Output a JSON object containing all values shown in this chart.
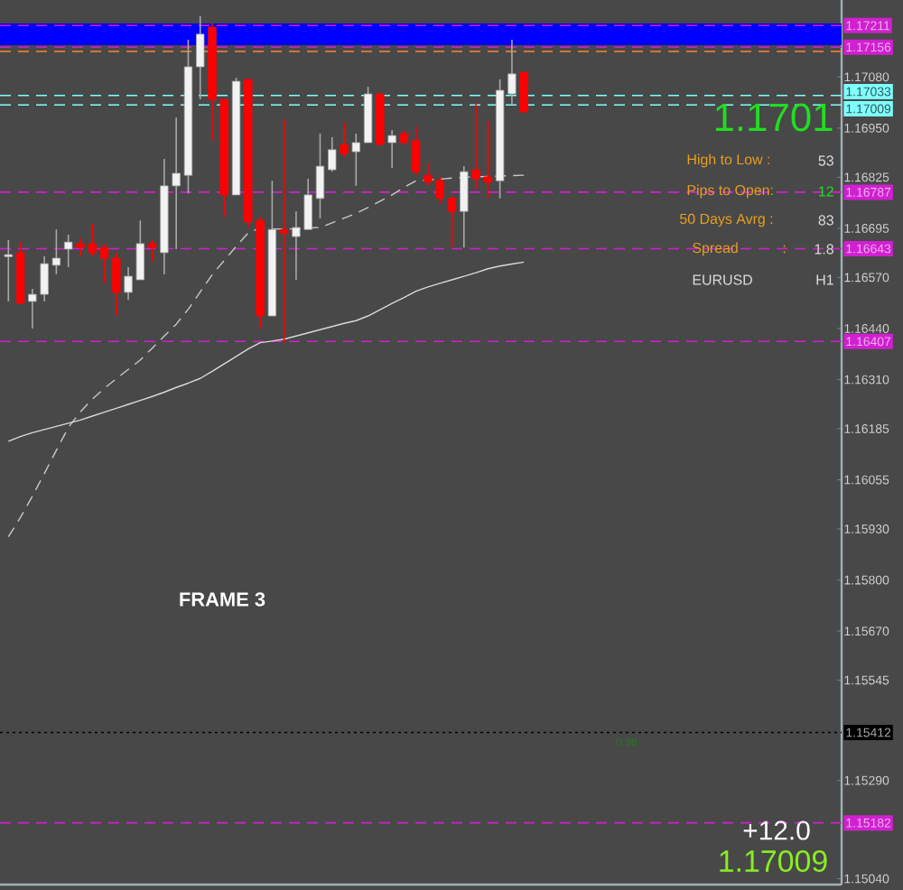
{
  "chart_data": {
    "type": "candlestick",
    "categories": [
      null,
      null,
      null,
      null,
      null,
      null,
      null,
      null,
      null,
      null,
      null,
      null,
      null,
      null,
      null,
      null,
      null,
      null,
      null,
      null,
      null,
      null,
      null,
      null,
      null,
      null,
      null,
      null,
      null,
      null,
      null,
      null,
      null,
      null,
      null,
      null,
      null,
      null,
      null,
      null,
      null,
      null,
      null,
      null
    ],
    "ohlc": [
      [
        1.16623,
        1.16665,
        1.16509,
        1.16628
      ],
      [
        1.16633,
        1.1666,
        1.16504,
        1.16504
      ],
      [
        1.16509,
        1.16541,
        1.1644,
        1.16527
      ],
      [
        1.16527,
        1.16624,
        1.16509,
        1.16605
      ],
      [
        1.16601,
        1.16692,
        1.16578,
        1.16619
      ],
      [
        1.16642,
        1.16679,
        1.16596,
        1.1666
      ],
      [
        1.16656,
        1.16669,
        1.16624,
        1.16646
      ],
      [
        1.16656,
        1.16706,
        1.16624,
        1.16633
      ],
      [
        1.16646,
        1.16656,
        1.16555,
        1.16619
      ],
      [
        1.16619,
        1.16633,
        1.16472,
        1.16532
      ],
      [
        1.16532,
        1.16596,
        1.16513,
        1.16573
      ],
      [
        1.16564,
        1.16715,
        1.16564,
        1.16656
      ],
      [
        1.16656,
        1.16665,
        1.1661,
        1.16646
      ],
      [
        1.16633,
        1.16872,
        1.16578,
        1.16803
      ],
      [
        1.16803,
        1.16977,
        1.16642,
        1.16835
      ],
      [
        1.1683,
        1.17175,
        1.16784,
        1.17106
      ],
      [
        1.17106,
        1.17235,
        1.17023,
        1.17189
      ],
      [
        1.17207,
        1.17216,
        1.16918,
        1.17023
      ],
      [
        1.17023,
        1.17023,
        1.16725,
        1.1678
      ],
      [
        1.1678,
        1.17078,
        1.1678,
        1.17069
      ],
      [
        1.17074,
        1.17074,
        1.16697,
        1.16711
      ],
      [
        1.16715,
        1.16725,
        1.1644,
        1.16472
      ],
      [
        1.16472,
        1.16816,
        1.16472,
        1.16692
      ],
      [
        1.16692,
        1.16973,
        1.16403,
        1.16683
      ],
      [
        1.16674,
        1.16738,
        1.16564,
        1.16697
      ],
      [
        1.16692,
        1.16821,
        1.16692,
        1.1678
      ],
      [
        1.16771,
        1.16936,
        1.1672,
        1.16853
      ],
      [
        1.16844,
        1.16927,
        1.16839,
        1.16895
      ],
      [
        1.16908,
        1.16964,
        1.16876,
        1.16885
      ],
      [
        1.1689,
        1.16936,
        1.16803,
        1.16913
      ],
      [
        1.16913,
        1.17055,
        1.16913,
        1.17037
      ],
      [
        1.17037,
        1.17037,
        1.16908,
        1.16908
      ],
      [
        1.16913,
        1.16945,
        1.16849,
        1.16931
      ],
      [
        1.16936,
        1.16945,
        1.16908,
        1.16913
      ],
      [
        1.16918,
        1.16954,
        1.1683,
        1.16839
      ],
      [
        1.1683,
        1.16862,
        1.16803,
        1.16812
      ],
      [
        1.16816,
        1.16826,
        1.16757,
        1.16771
      ],
      [
        1.16771,
        1.1678,
        1.16646,
        1.16738
      ],
      [
        1.16738,
        1.16853,
        1.16646,
        1.16839
      ],
      [
        1.16844,
        1.17014,
        1.16794,
        1.16821
      ],
      [
        1.16826,
        1.16968,
        1.16771,
        1.16812
      ],
      [
        1.16816,
        1.17074,
        1.16771,
        1.17046
      ],
      [
        1.17037,
        1.17175,
        1.17009,
        1.17088
      ],
      [
        1.17092,
        1.17092,
        1.16991,
        1.16991
      ]
    ],
    "series": [
      {
        "type": "line",
        "color": "#c8c8c8",
        "line_style": "dashed",
        "values": [
          1.1591,
          1.15959,
          1.16013,
          1.16071,
          1.1613,
          1.16188,
          1.16228,
          1.1626,
          1.16288,
          1.16312,
          1.16336,
          1.1636,
          1.1639,
          1.16421,
          1.16451,
          1.16489,
          1.16533,
          1.16577,
          1.16613,
          1.16649,
          1.16683,
          1.16696,
          1.16694,
          1.16693,
          1.16694,
          1.16696,
          1.16697,
          1.16709,
          1.16721,
          1.16733,
          1.16748,
          1.16764,
          1.1678,
          1.16799,
          1.16816,
          1.16818,
          1.1682,
          1.16823,
          1.16825,
          1.16826,
          1.16827,
          1.16828,
          1.16829,
          1.1683
        ]
      },
      {
        "type": "line",
        "color": "#d8d8d8",
        "line_style": "solid",
        "values": [
          1.16153,
          1.16165,
          1.16175,
          1.16183,
          1.16191,
          1.16199,
          1.16207,
          1.16217,
          1.16227,
          1.16237,
          1.16247,
          1.16257,
          1.16267,
          1.16278,
          1.1629,
          1.16301,
          1.16313,
          1.16331,
          1.1635,
          1.16369,
          1.16388,
          1.16404,
          1.16408,
          1.16413,
          1.16421,
          1.16429,
          1.16437,
          1.16445,
          1.16453,
          1.1646,
          1.16472,
          1.16488,
          1.16504,
          1.16519,
          1.16535,
          1.16546,
          1.16555,
          1.16564,
          1.16573,
          1.16582,
          1.16592,
          1.16599,
          1.16604,
          1.16609
        ]
      }
    ],
    "ylim": [
      1.15025,
      1.17276
    ],
    "yticks": [
      {
        "value": 1.1708,
        "label": "1.17080"
      },
      {
        "value": 1.1695,
        "label": "1.16950"
      },
      {
        "value": 1.16825,
        "label": "1.16825"
      },
      {
        "value": 1.16695,
        "label": "1.16695"
      },
      {
        "value": 1.1657,
        "label": "1.16570"
      },
      {
        "value": 1.1644,
        "label": "1.16440"
      },
      {
        "value": 1.1631,
        "label": "1.16310"
      },
      {
        "value": 1.16185,
        "label": "1.16185"
      },
      {
        "value": 1.16055,
        "label": "1.16055"
      },
      {
        "value": 1.1593,
        "label": "1.15930"
      },
      {
        "value": 1.158,
        "label": "1.15800"
      },
      {
        "value": 1.1567,
        "label": "1.15670"
      },
      {
        "value": 1.15545,
        "label": "1.15545"
      },
      {
        "value": 1.1529,
        "label": "1.15290"
      },
      {
        "value": 1.1504,
        "label": "1.15040"
      }
    ],
    "tick_labels": "y",
    "bands": [
      {
        "axis": "y",
        "from": 1.17161,
        "to": 1.17216,
        "color": "#0000ff"
      }
    ],
    "ref_lines": [
      {
        "axis": "y",
        "value": 1.17211,
        "label": "1.17211",
        "color": "#d020d0",
        "line_style": "dashed"
      },
      {
        "axis": "y",
        "value": 1.17156,
        "label": "1.17156",
        "color": "#d020d0",
        "line_style": "dashed"
      },
      {
        "axis": "y",
        "value": 1.17145,
        "color": "#ff8040",
        "line_style": "dashed"
      },
      {
        "axis": "y",
        "value": 1.17033,
        "label": "1.17033",
        "color": "#80ffff",
        "line_style": "dashed"
      },
      {
        "axis": "y",
        "value": 1.17009,
        "label": "1.17009",
        "color": "#80ffff",
        "line_style": "dashed"
      },
      {
        "axis": "y",
        "value": 1.16787,
        "label": "1.16787",
        "color": "#d020d0",
        "line_style": "dashed"
      },
      {
        "axis": "y",
        "value": 1.16643,
        "label": "1.16643",
        "color": "#d020d0",
        "line_style": "dashed"
      },
      {
        "axis": "y",
        "value": 1.16407,
        "label": "1.16407",
        "color": "#d020d0",
        "line_style": "dashed"
      },
      {
        "axis": "y",
        "value": 1.15412,
        "label": "1.15412",
        "color": "#000000",
        "line_style": "dotted"
      },
      {
        "axis": "y",
        "value": 1.15182,
        "label": "1.15182",
        "color": "#d020d0",
        "line_style": "dashed"
      }
    ],
    "annotations": [
      "1.1701",
      "High to Low :",
      "53",
      "Pips to Open:",
      "12",
      "50 Days Avrg :",
      "83",
      "Spread",
      ":",
      "1.8",
      "EURUSD",
      "H1",
      "FRAME 3",
      "0.38",
      "+12.0",
      "1.17009"
    ]
  }
}
